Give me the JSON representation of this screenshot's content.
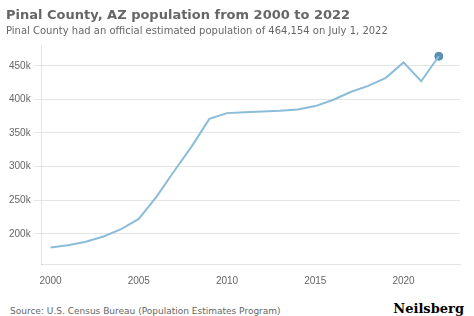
{
  "chart_data": {
    "type": "line",
    "title": "Pinal County, AZ population from 2000 to 2022",
    "subtitle": "Pinal County had an official estimated population of 464,154 on July 1, 2022",
    "annotations": [
      "Source: U.S. Census Bureau (Population Estimates Program)",
      "Neilsberg"
    ],
    "x": [
      2000,
      2001,
      2002,
      2003,
      2004,
      2005,
      2006,
      2007,
      2008,
      2009,
      2010,
      2011,
      2012,
      2013,
      2014,
      2015,
      2016,
      2017,
      2018,
      2019,
      2020,
      2021,
      2022
    ],
    "series": [
      {
        "color": "#8bbdd9",
        "values": [
          179727,
          183000,
          188000,
          196000,
          207000,
          222000,
          255000,
          293000,
          330000,
          371000,
          379518,
          381000,
          382000,
          383000,
          385000,
          390000,
          399000,
          411000,
          420000,
          432000,
          455000,
          427000,
          464154
        ]
      },
      {
        "type": "scatter",
        "color": "#5a8fb5",
        "values": [
          null,
          null,
          null,
          null,
          null,
          null,
          null,
          null,
          null,
          null,
          null,
          null,
          null,
          null,
          null,
          null,
          null,
          null,
          null,
          null,
          null,
          null,
          464154
        ]
      }
    ],
    "xlim": [
      1999.5,
      2023.2
    ],
    "xticks": [
      2000,
      2005,
      2010,
      2015,
      2020
    ],
    "ylim": [
      155000,
      480000
    ],
    "yticks": [
      {
        "value": 200000,
        "label": "200k"
      },
      {
        "value": 250000,
        "label": "250k"
      },
      {
        "value": 300000,
        "label": "300k"
      },
      {
        "value": 350000,
        "label": "350k"
      },
      {
        "value": 400000,
        "label": "400k"
      },
      {
        "value": 450000,
        "label": "450k"
      }
    ],
    "grid": "y"
  }
}
